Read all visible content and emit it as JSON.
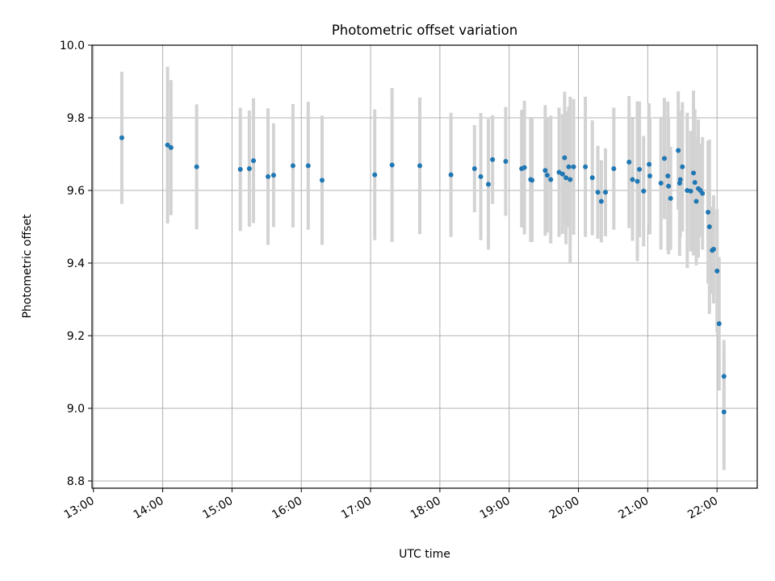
{
  "chart_data": {
    "type": "scatter",
    "title": "Photometric offset variation",
    "xlabel": "UTC time",
    "ylabel": "Photometric offset",
    "x_tick_labels": [
      "13:00",
      "14:00",
      "15:00",
      "16:00",
      "17:00",
      "18:00",
      "19:00",
      "20:00",
      "21:00",
      "22:00"
    ],
    "x_tick_hours": [
      13,
      14,
      15,
      16,
      17,
      18,
      19,
      20,
      21,
      22
    ],
    "y_ticks": [
      8.8,
      9.0,
      9.2,
      9.4,
      9.6,
      9.8,
      10.0
    ],
    "y_tick_labels": [
      "8.8",
      "9.0",
      "9.2",
      "9.4",
      "9.6",
      "9.8",
      "10.0"
    ],
    "xlim_hours": [
      12.98,
      22.58
    ],
    "ylim": [
      8.78,
      10.0
    ],
    "grid": true,
    "colors": {
      "point": "#1f77b4",
      "errorbar": "#d3d3d3",
      "grid": "#b0b0b0"
    },
    "series": [
      {
        "x_hours": [
          13.41,
          14.07,
          14.12,
          14.49,
          15.12,
          15.25,
          15.31,
          15.52,
          15.6,
          15.88,
          16.1,
          16.3,
          17.06,
          17.31,
          17.71,
          18.16,
          18.5,
          18.59,
          18.7,
          18.76,
          18.95,
          19.18,
          19.22,
          19.31,
          19.33,
          19.52,
          19.55,
          19.6,
          19.72,
          19.77,
          19.8,
          19.82,
          19.86,
          19.88,
          19.93,
          20.1,
          20.2,
          20.28,
          20.33,
          20.39,
          20.51,
          20.73,
          20.78,
          20.85,
          20.88,
          20.94,
          21.02,
          21.03,
          21.19,
          21.24,
          21.29,
          21.3,
          21.33,
          21.44,
          21.46,
          21.47,
          21.5,
          21.57,
          21.62,
          21.66,
          21.68,
          21.7,
          21.73,
          21.76,
          21.79,
          21.87,
          21.89,
          21.93,
          21.95,
          22.0,
          22.03,
          22.1,
          22.1
        ],
        "y": [
          9.745,
          9.725,
          9.718,
          9.665,
          9.658,
          9.66,
          9.682,
          9.638,
          9.642,
          9.668,
          9.668,
          9.628,
          9.643,
          9.67,
          9.668,
          9.643,
          9.66,
          9.638,
          9.617,
          9.685,
          9.68,
          9.66,
          9.663,
          9.63,
          9.628,
          9.655,
          9.642,
          9.63,
          9.65,
          9.645,
          9.69,
          9.635,
          9.665,
          9.63,
          9.665,
          9.665,
          9.635,
          9.595,
          9.57,
          9.595,
          9.66,
          9.678,
          9.63,
          9.625,
          9.658,
          9.598,
          9.672,
          9.64,
          9.62,
          9.688,
          9.64,
          9.612,
          9.578,
          9.71,
          9.62,
          9.63,
          9.665,
          9.6,
          9.598,
          9.648,
          9.622,
          9.57,
          9.605,
          9.6,
          9.592,
          9.54,
          9.5,
          9.435,
          9.438,
          9.378,
          9.233,
          9.088,
          8.99
        ],
        "err": [
          0.182,
          0.216,
          0.186,
          0.172,
          0.17,
          0.16,
          0.172,
          0.188,
          0.143,
          0.17,
          0.176,
          0.178,
          0.18,
          0.212,
          0.188,
          0.171,
          0.12,
          0.175,
          0.18,
          0.122,
          0.15,
          0.162,
          0.184,
          0.172,
          0.17,
          0.18,
          0.158,
          0.176,
          0.178,
          0.165,
          0.182,
          0.183,
          0.166,
          0.228,
          0.187,
          0.193,
          0.158,
          0.128,
          0.113,
          0.121,
          0.168,
          0.182,
          0.169,
          0.22,
          0.187,
          0.152,
          0.168,
          0.161,
          0.183,
          0.167,
          0.205,
          0.188,
          0.142,
          0.163,
          0.2,
          0.159,
          0.178,
          0.214,
          0.166,
          0.227,
          0.201,
          0.176,
          0.19,
          0.128,
          0.155,
          0.196,
          0.24,
          0.12,
          0.149,
          0.17,
          0.184,
          0.1,
          0.16
        ]
      }
    ]
  }
}
